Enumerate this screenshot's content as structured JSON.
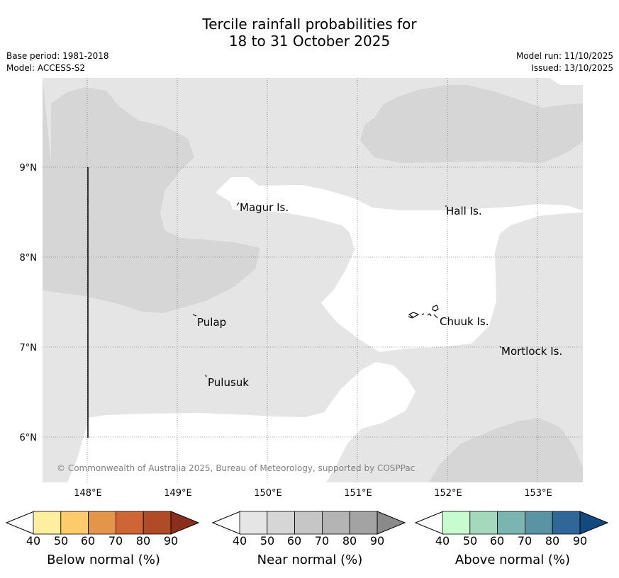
{
  "title": {
    "line1": "Tercile rainfall probabilities for",
    "line2": "18 to 31 October 2025"
  },
  "meta": {
    "base_period": "Base period: 1981-2018",
    "model": "Model: ACCESS-S2",
    "model_run": "Model run: 11/10/2025",
    "issued": "Issued: 13/10/2025"
  },
  "map": {
    "lon_labels": [
      "148°E",
      "149°E",
      "150°E",
      "151°E",
      "152°E",
      "153°E"
    ],
    "lat_labels": [
      "9°N",
      "8°N",
      "7°N",
      "6°N"
    ],
    "places": [
      {
        "name": "Magur Is."
      },
      {
        "name": "Hall Is."
      },
      {
        "name": "Pulap"
      },
      {
        "name": "Chuuk Is."
      },
      {
        "name": "Mortlock Is."
      },
      {
        "name": "Pulusuk"
      }
    ],
    "copyright": "© Commonwealth of Australia 2025, Bureau of Meteorology, supported by COSPPac",
    "colors": {
      "near_40_50": "#e5e5e5",
      "near_50_60": "#d6d6d6",
      "white": "#ffffff"
    }
  },
  "legends": [
    {
      "label": "Below normal (%)",
      "ticks": [
        "40",
        "50",
        "60",
        "70",
        "80",
        "90"
      ],
      "colors": [
        "#fdeea0",
        "#fdcb6a",
        "#e3954a",
        "#cd6534",
        "#b14a27",
        "#8a2e1d"
      ]
    },
    {
      "label": "Near normal (%)",
      "ticks": [
        "40",
        "50",
        "60",
        "70",
        "80",
        "90"
      ],
      "colors": [
        "#e5e5e5",
        "#d6d6d6",
        "#c6c6c6",
        "#b4b4b4",
        "#a3a3a3",
        "#8a8a8a"
      ]
    },
    {
      "label": "Above normal (%)",
      "ticks": [
        "40",
        "50",
        "60",
        "70",
        "80",
        "90"
      ],
      "colors": [
        "#c7fcd0",
        "#a5d9bd",
        "#7bb5b1",
        "#5a93a3",
        "#306698",
        "#12497f"
      ]
    }
  ]
}
